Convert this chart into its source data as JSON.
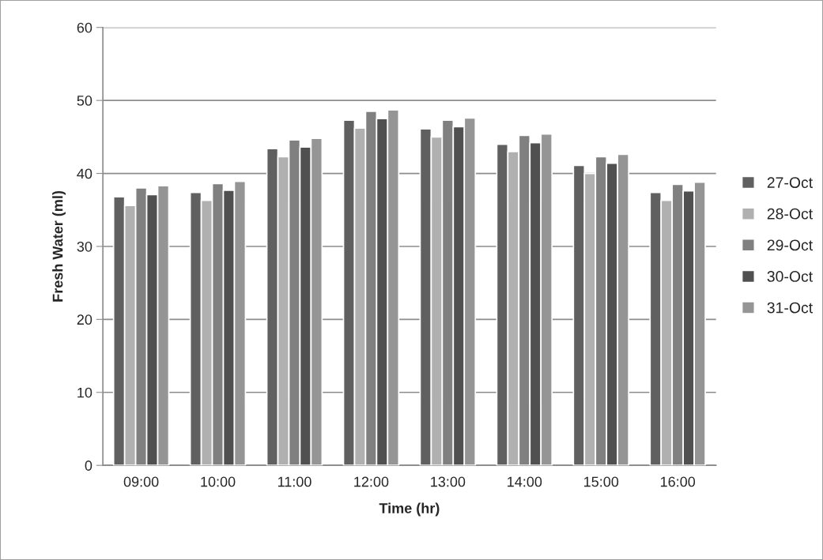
{
  "chart_data": {
    "type": "bar",
    "xlabel": "Time (hr)",
    "ylabel": "Fresh Water (ml)",
    "categories": [
      "09:00",
      "10:00",
      "11:00",
      "12:00",
      "13:00",
      "14:00",
      "15:00",
      "16:00"
    ],
    "series": [
      {
        "name": "27-Oct",
        "color": "#606060",
        "values": [
          36.8,
          37.4,
          43.4,
          47.3,
          46.1,
          44.0,
          41.1,
          37.4
        ]
      },
      {
        "name": "28-Oct",
        "color": "#b0b0b0",
        "values": [
          35.6,
          36.3,
          42.3,
          46.2,
          45.0,
          43.0,
          40.0,
          36.3
        ]
      },
      {
        "name": "29-Oct",
        "color": "#808080",
        "values": [
          38.0,
          38.6,
          44.6,
          48.5,
          47.3,
          45.2,
          42.3,
          38.5
        ]
      },
      {
        "name": "30-Oct",
        "color": "#505050",
        "values": [
          37.1,
          37.7,
          43.6,
          47.5,
          46.4,
          44.2,
          41.4,
          37.6
        ]
      },
      {
        "name": "31-Oct",
        "color": "#959595",
        "values": [
          38.3,
          38.9,
          44.8,
          48.7,
          47.6,
          45.4,
          42.6,
          38.8
        ]
      }
    ],
    "ylim": [
      0,
      60
    ],
    "yticks": [
      0,
      10,
      20,
      30,
      40,
      50,
      60
    ],
    "grid": "y",
    "legend": "right"
  }
}
